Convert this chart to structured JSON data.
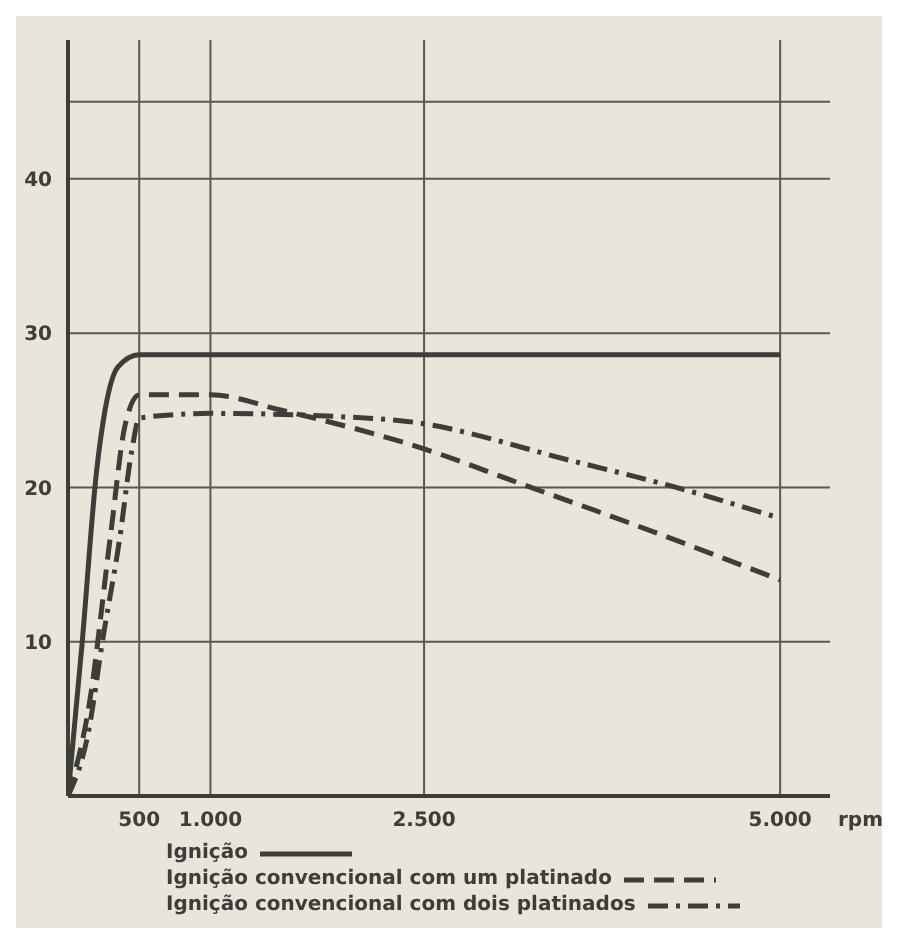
{
  "chart_data": {
    "type": "line",
    "xlabel": "rpm",
    "xlim": [
      0,
      5350
    ],
    "ylim": [
      0,
      49
    ],
    "xticks": [
      500,
      {
        "value": 1000,
        "label": "1.000"
      },
      {
        "value": 2500,
        "label": "2.500"
      },
      {
        "value": 5000,
        "label": "5.000"
      }
    ],
    "yticks": [
      10,
      20,
      30,
      40,
      {
        "value": 45,
        "label": null
      }
    ],
    "grid": true,
    "legend": "bottom",
    "series": [
      {
        "name": "Ignição",
        "color": "#3f3d3a",
        "line_style": "solid",
        "x": [
          0,
          100,
          200,
          260,
          350,
          500,
          5000
        ],
        "values": [
          0,
          10,
          21,
          25,
          27.8,
          28.6,
          28.6
        ]
      },
      {
        "name": "Ignição convencional com um platinado",
        "color": "#3f3d3a",
        "line_style": "dashed",
        "x": [
          0,
          150,
          300,
          400,
          500,
          1000,
          1500,
          2500,
          3250,
          4000,
          5000
        ],
        "values": [
          0,
          6,
          17,
          24,
          26,
          26,
          25,
          22.5,
          20,
          17.5,
          14
        ]
      },
      {
        "name": "Ignição convencional com dois platinados",
        "color": "#3f3d3a",
        "line_style": "dashdot",
        "x": [
          0,
          140,
          250,
          360,
          450,
          500,
          1000,
          2250,
          3590,
          4270,
          5000
        ],
        "values": [
          0,
          4,
          10.5,
          16.5,
          22.5,
          24.5,
          24.8,
          24.4,
          21.6,
          20,
          18
        ]
      }
    ]
  }
}
